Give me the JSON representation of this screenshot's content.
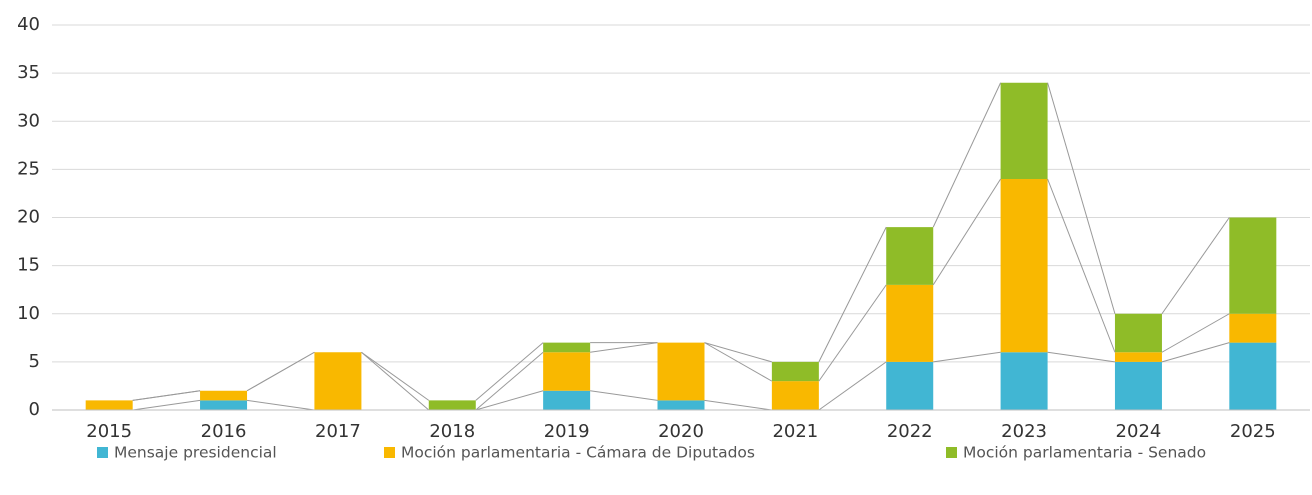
{
  "chart_data": {
    "type": "stacked_bar",
    "categories": [
      "2015",
      "2016",
      "2017",
      "2018",
      "2019",
      "2020",
      "2021",
      "2022",
      "2023",
      "2024",
      "2025"
    ],
    "series": [
      {
        "name": "Mensaje presidencial",
        "color": "#41b6d3",
        "values": [
          0,
          1,
          0,
          0,
          2,
          1,
          0,
          5,
          6,
          5,
          7
        ]
      },
      {
        "name": "Moción parlamentaria - Cámara de Diputados",
        "color": "#f9b800",
        "values": [
          1,
          1,
          6,
          0,
          4,
          6,
          3,
          8,
          18,
          1,
          3
        ]
      },
      {
        "name": "Moción parlamentaria - Senado",
        "color": "#8fbc28",
        "values": [
          0,
          0,
          0,
          1,
          1,
          0,
          2,
          6,
          10,
          4,
          10
        ]
      }
    ],
    "ylim": [
      0,
      40
    ],
    "yticks": [
      0,
      5,
      10,
      15,
      20,
      25,
      30,
      35,
      40
    ],
    "grid": true
  }
}
